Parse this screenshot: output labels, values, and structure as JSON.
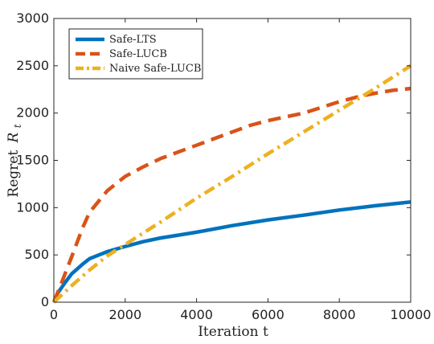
{
  "chart_data": {
    "type": "line",
    "title": "",
    "xlabel": "Iteration t",
    "ylabel": "Regret",
    "ylabel_symbol": "R",
    "ylabel_subscript": "t",
    "xlim": [
      0,
      10000
    ],
    "ylim": [
      0,
      3000
    ],
    "xticks": [
      0,
      2000,
      4000,
      6000,
      8000,
      10000
    ],
    "yticks": [
      0,
      500,
      1000,
      1500,
      2000,
      2500,
      3000
    ],
    "grid": false,
    "legend_position": "top-left",
    "series": [
      {
        "name": "Safe-LTS",
        "color": "#0072BD",
        "style": "solid",
        "x": [
          0,
          100,
          300,
          500,
          800,
          1000,
          1500,
          2000,
          2500,
          3000,
          3500,
          4000,
          5000,
          6000,
          7000,
          8000,
          9000,
          10000
        ],
        "y": [
          0,
          90,
          200,
          300,
          400,
          460,
          535,
          590,
          640,
          680,
          710,
          740,
          810,
          870,
          920,
          975,
          1020,
          1060
        ]
      },
      {
        "name": "Safe-LUCB",
        "color": "#D95319",
        "style": "dashed",
        "x": [
          0,
          200,
          500,
          800,
          1000,
          1500,
          2000,
          2500,
          3000,
          3500,
          4000,
          4500,
          5000,
          5500,
          6000,
          6500,
          7000,
          7500,
          8000,
          8500,
          9000,
          9500,
          10000
        ],
        "y": [
          0,
          190,
          480,
          780,
          950,
          1180,
          1330,
          1430,
          1520,
          1590,
          1660,
          1730,
          1800,
          1870,
          1920,
          1960,
          2000,
          2060,
          2120,
          2170,
          2210,
          2240,
          2260
        ]
      },
      {
        "name": "Naive Safe-LUCB",
        "color": "#EDB120",
        "style": "dashdot",
        "x": [
          0,
          500,
          1000,
          1500,
          2000,
          3000,
          4000,
          5000,
          6000,
          7000,
          8000,
          9000,
          10000
        ],
        "y": [
          0,
          175,
          340,
          490,
          610,
          850,
          1100,
          1330,
          1570,
          1800,
          2030,
          2260,
          2500
        ]
      }
    ]
  }
}
